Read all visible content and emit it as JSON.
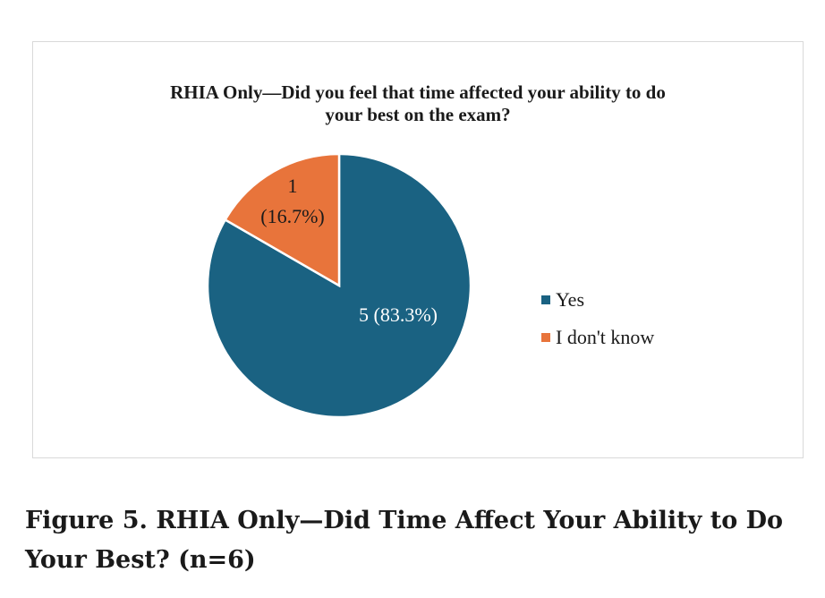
{
  "chart_data": {
    "type": "pie",
    "title_lines": [
      "RHIA Only—Did you feel that time affected your ability to do",
      "your best on the exam?"
    ],
    "slices": [
      {
        "name": "Yes",
        "value": 5,
        "percent": 83.3,
        "label": "5 (83.3%)",
        "color": "#1a6282"
      },
      {
        "name": "I don't know",
        "value": 1,
        "percent": 16.7,
        "label_lines": [
          "1",
          "(16.7%)"
        ],
        "color": "#e8743b"
      }
    ],
    "legend_position": "right"
  },
  "caption": "Figure 5. RHIA Only—Did Time Affect Your Ability to Do Your Best? (n=6)"
}
